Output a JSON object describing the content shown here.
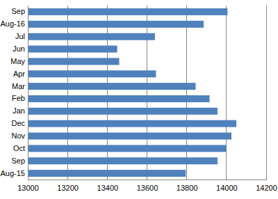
{
  "chart_data": {
    "type": "bar",
    "orientation": "horizontal",
    "categories": [
      "Aug-15",
      "Sep",
      "Oct",
      "Nov",
      "Dec",
      "Jan",
      "Feb",
      "Mar",
      "Apr",
      "May",
      "Jun",
      "Jul",
      "Aug-16",
      "Sep"
    ],
    "values": [
      13795,
      13955,
      14000,
      14025,
      14050,
      13955,
      13915,
      13845,
      13645,
      13460,
      13450,
      13640,
      13885,
      14005
    ],
    "color": "#4f81bd",
    "xlim": [
      13000,
      14200
    ],
    "xticks": [
      13000,
      13200,
      13400,
      13600,
      13800,
      14000,
      14200
    ],
    "grid": true
  }
}
